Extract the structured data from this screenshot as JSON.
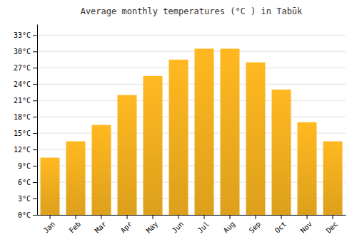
{
  "chart_data": {
    "type": "bar",
    "title": "Average monthly temperatures (°C ) in Tabūk",
    "categories": [
      "Jan",
      "Feb",
      "Mar",
      "Apr",
      "May",
      "Jun",
      "Jul",
      "Aug",
      "Sep",
      "Oct",
      "Nov",
      "Dec"
    ],
    "values": [
      10.5,
      13.5,
      16.5,
      22.0,
      25.5,
      28.5,
      30.5,
      30.5,
      28.0,
      23.0,
      17.0,
      13.5
    ],
    "color": "#FFB820",
    "ylim": [
      0,
      35
    ],
    "yticks": [
      {
        "value": 0,
        "label": "0°C"
      },
      {
        "value": 3,
        "label": "3°C"
      },
      {
        "value": 6,
        "label": "6°C"
      },
      {
        "value": 9,
        "label": "9°C"
      },
      {
        "value": 12,
        "label": "12°C"
      },
      {
        "value": 15,
        "label": "15°C"
      },
      {
        "value": 18,
        "label": "18°C"
      },
      {
        "value": 21,
        "label": "21°C"
      },
      {
        "value": 24,
        "label": "24°C"
      },
      {
        "value": 27,
        "label": "27°C"
      },
      {
        "value": 30,
        "label": "30°C"
      },
      {
        "value": 33,
        "label": "33°C"
      }
    ],
    "grid": true
  }
}
